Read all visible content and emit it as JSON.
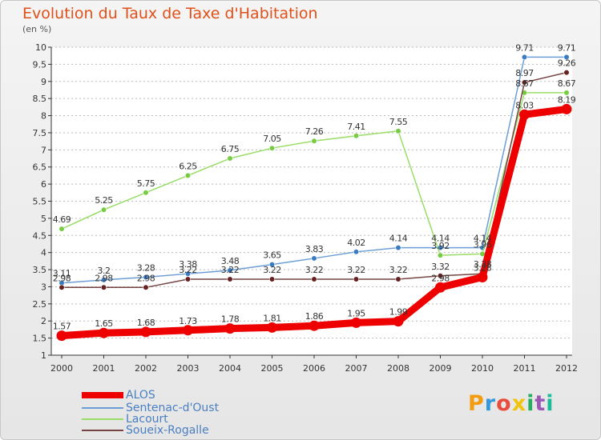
{
  "title": "Evolution du Taux de Taxe d'Habitation",
  "unit_label": "(en %)",
  "brand": "Proxiti",
  "chart_data": {
    "type": "line",
    "x": [
      "2000",
      "2001",
      "2002",
      "2003",
      "2004",
      "2005",
      "2006",
      "2007",
      "2008",
      "2009",
      "2010",
      "2011",
      "2012"
    ],
    "ylim": [
      1,
      10
    ],
    "y_ticks": [
      "1",
      "1.5",
      "2",
      "2.5",
      "3",
      "3.5",
      "4",
      "4.5",
      "5",
      "5.5",
      "6",
      "6.5",
      "7",
      "7.5",
      "8",
      "8.5",
      "9",
      "9.5",
      "10"
    ],
    "grid": "horizontal dashed",
    "legend_position": "bottom-left",
    "series": [
      {
        "name": "Sentenac-d'Oust",
        "color": "#6c9ed6",
        "marker": "#3a7cc4",
        "values": [
          3.11,
          3.2,
          3.28,
          3.38,
          3.48,
          3.65,
          3.83,
          4.02,
          4.14,
          4.14,
          4.14,
          9.71,
          9.71
        ],
        "labels": [
          "3.11",
          "3.2",
          "3.28",
          "3.38",
          "3.48",
          "3.65",
          "3.83",
          "4.02",
          "4.14",
          "4.14",
          "4.14",
          "9.71",
          "9.71"
        ]
      },
      {
        "name": "Lacourt",
        "color": "#99dd66",
        "marker": "#77cc44",
        "values": [
          4.69,
          5.25,
          5.75,
          6.25,
          6.75,
          7.05,
          7.26,
          7.41,
          7.55,
          3.92,
          3.96,
          8.67,
          8.67
        ],
        "labels": [
          "4.69",
          "5.25",
          "5.75",
          "6.25",
          "6.75",
          "7.05",
          "7.26",
          "7.41",
          "7.55",
          "3.92",
          "3.96",
          "8.67",
          "8.67"
        ]
      },
      {
        "name": "Soueix-Rogalle",
        "color": "#774444",
        "marker": "#662222",
        "values": [
          2.98,
          2.98,
          2.98,
          3.22,
          3.22,
          3.22,
          3.22,
          3.22,
          3.22,
          3.32,
          3.38,
          8.97,
          9.26
        ],
        "labels": [
          "2.98",
          "2.98",
          "2.98",
          "3.22",
          "3.22",
          "3.22",
          "3.22",
          "3.22",
          "3.22",
          "3.32",
          "3.38",
          "8.97",
          "9.26"
        ]
      },
      {
        "name": "ALOS",
        "color": "#ee0000",
        "marker": "#ee0000",
        "values": [
          1.57,
          1.65,
          1.68,
          1.73,
          1.78,
          1.81,
          1.86,
          1.95,
          1.99,
          2.98,
          3.28,
          8.03,
          8.19
        ],
        "labels": [
          "1.57",
          "1.65",
          "1.68",
          "1.73",
          "1.78",
          "1.81",
          "1.86",
          "1.95",
          "1.99",
          "2.98",
          "3.28",
          "8.03",
          "8.19"
        ]
      }
    ],
    "legend": [
      "ALOS",
      "Sentenac-d'Oust",
      "Lacourt",
      "Soueix-Rogalle"
    ]
  }
}
